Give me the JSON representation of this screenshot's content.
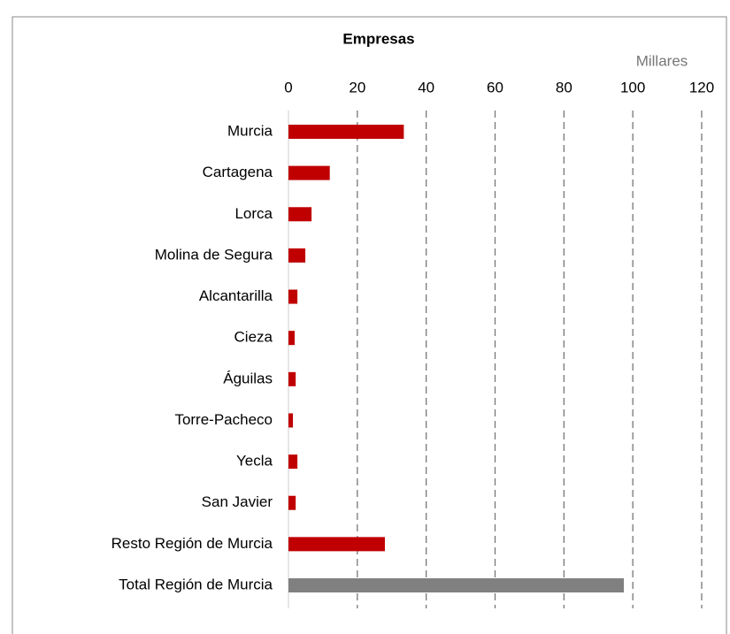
{
  "chart_data": {
    "type": "bar",
    "orientation": "horizontal",
    "title": "Empresas",
    "axis_unit_label": "Millares",
    "categories": [
      "Murcia",
      "Cartagena",
      "Lorca",
      "Molina de Segura",
      "Alcantarilla",
      "Cieza",
      "Águilas",
      "Torre-Pacheco",
      "Yecla",
      "San Javier",
      "Resto Región de Murcia",
      "Total Región de Murcia"
    ],
    "values": [
      33.5,
      12,
      6.7,
      4.9,
      2.6,
      1.8,
      2.1,
      1.3,
      2.6,
      2.1,
      28,
      97.4
    ],
    "colors": [
      "#c00000",
      "#c00000",
      "#c00000",
      "#c00000",
      "#c00000",
      "#c00000",
      "#c00000",
      "#c00000",
      "#c00000",
      "#c00000",
      "#c00000",
      "#808080"
    ],
    "xlim": [
      0,
      120
    ],
    "xticks": [
      0,
      20,
      40,
      60,
      80,
      100,
      120
    ],
    "grid": true,
    "axis_position": "top"
  }
}
